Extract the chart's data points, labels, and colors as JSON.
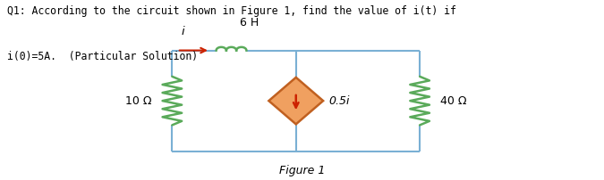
{
  "title_line1": "Q1: According to the circuit shown in Figure 1, find the value of i(t) if",
  "title_line2": "i(0)=5A.  (Particular Solution)",
  "figure_label": "Figure 1",
  "bg_color": "#ffffff",
  "wire_color": "#7ab0d4",
  "resistor_color": "#5aaa5a",
  "text_color": "#000000",
  "red_color": "#cc2200",
  "diamond_fill": "#f0a060",
  "diamond_edge": "#c06020",
  "inductor_label": "6 H",
  "resistor_left_label": "10 Ω",
  "resistor_right_label": "40 Ω",
  "current_source_label": "0.5i",
  "current_label": "i",
  "L": 0.285,
  "R": 0.695,
  "T": 0.72,
  "B": 0.16,
  "MX": 0.49
}
